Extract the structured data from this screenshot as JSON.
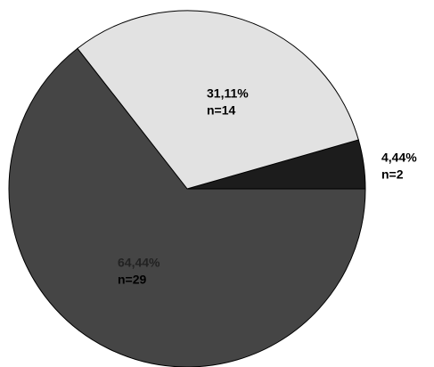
{
  "chart_data": {
    "type": "pie",
    "values": [
      4.44,
      31.11,
      64.44
    ],
    "value_labels": [
      "4,44%",
      "31,11%",
      "64,44%"
    ],
    "count_labels": [
      "n=2",
      "n=14",
      "n=29"
    ],
    "colors": [
      "#1c1c1c",
      "#e2e2e2",
      "#454545"
    ]
  }
}
